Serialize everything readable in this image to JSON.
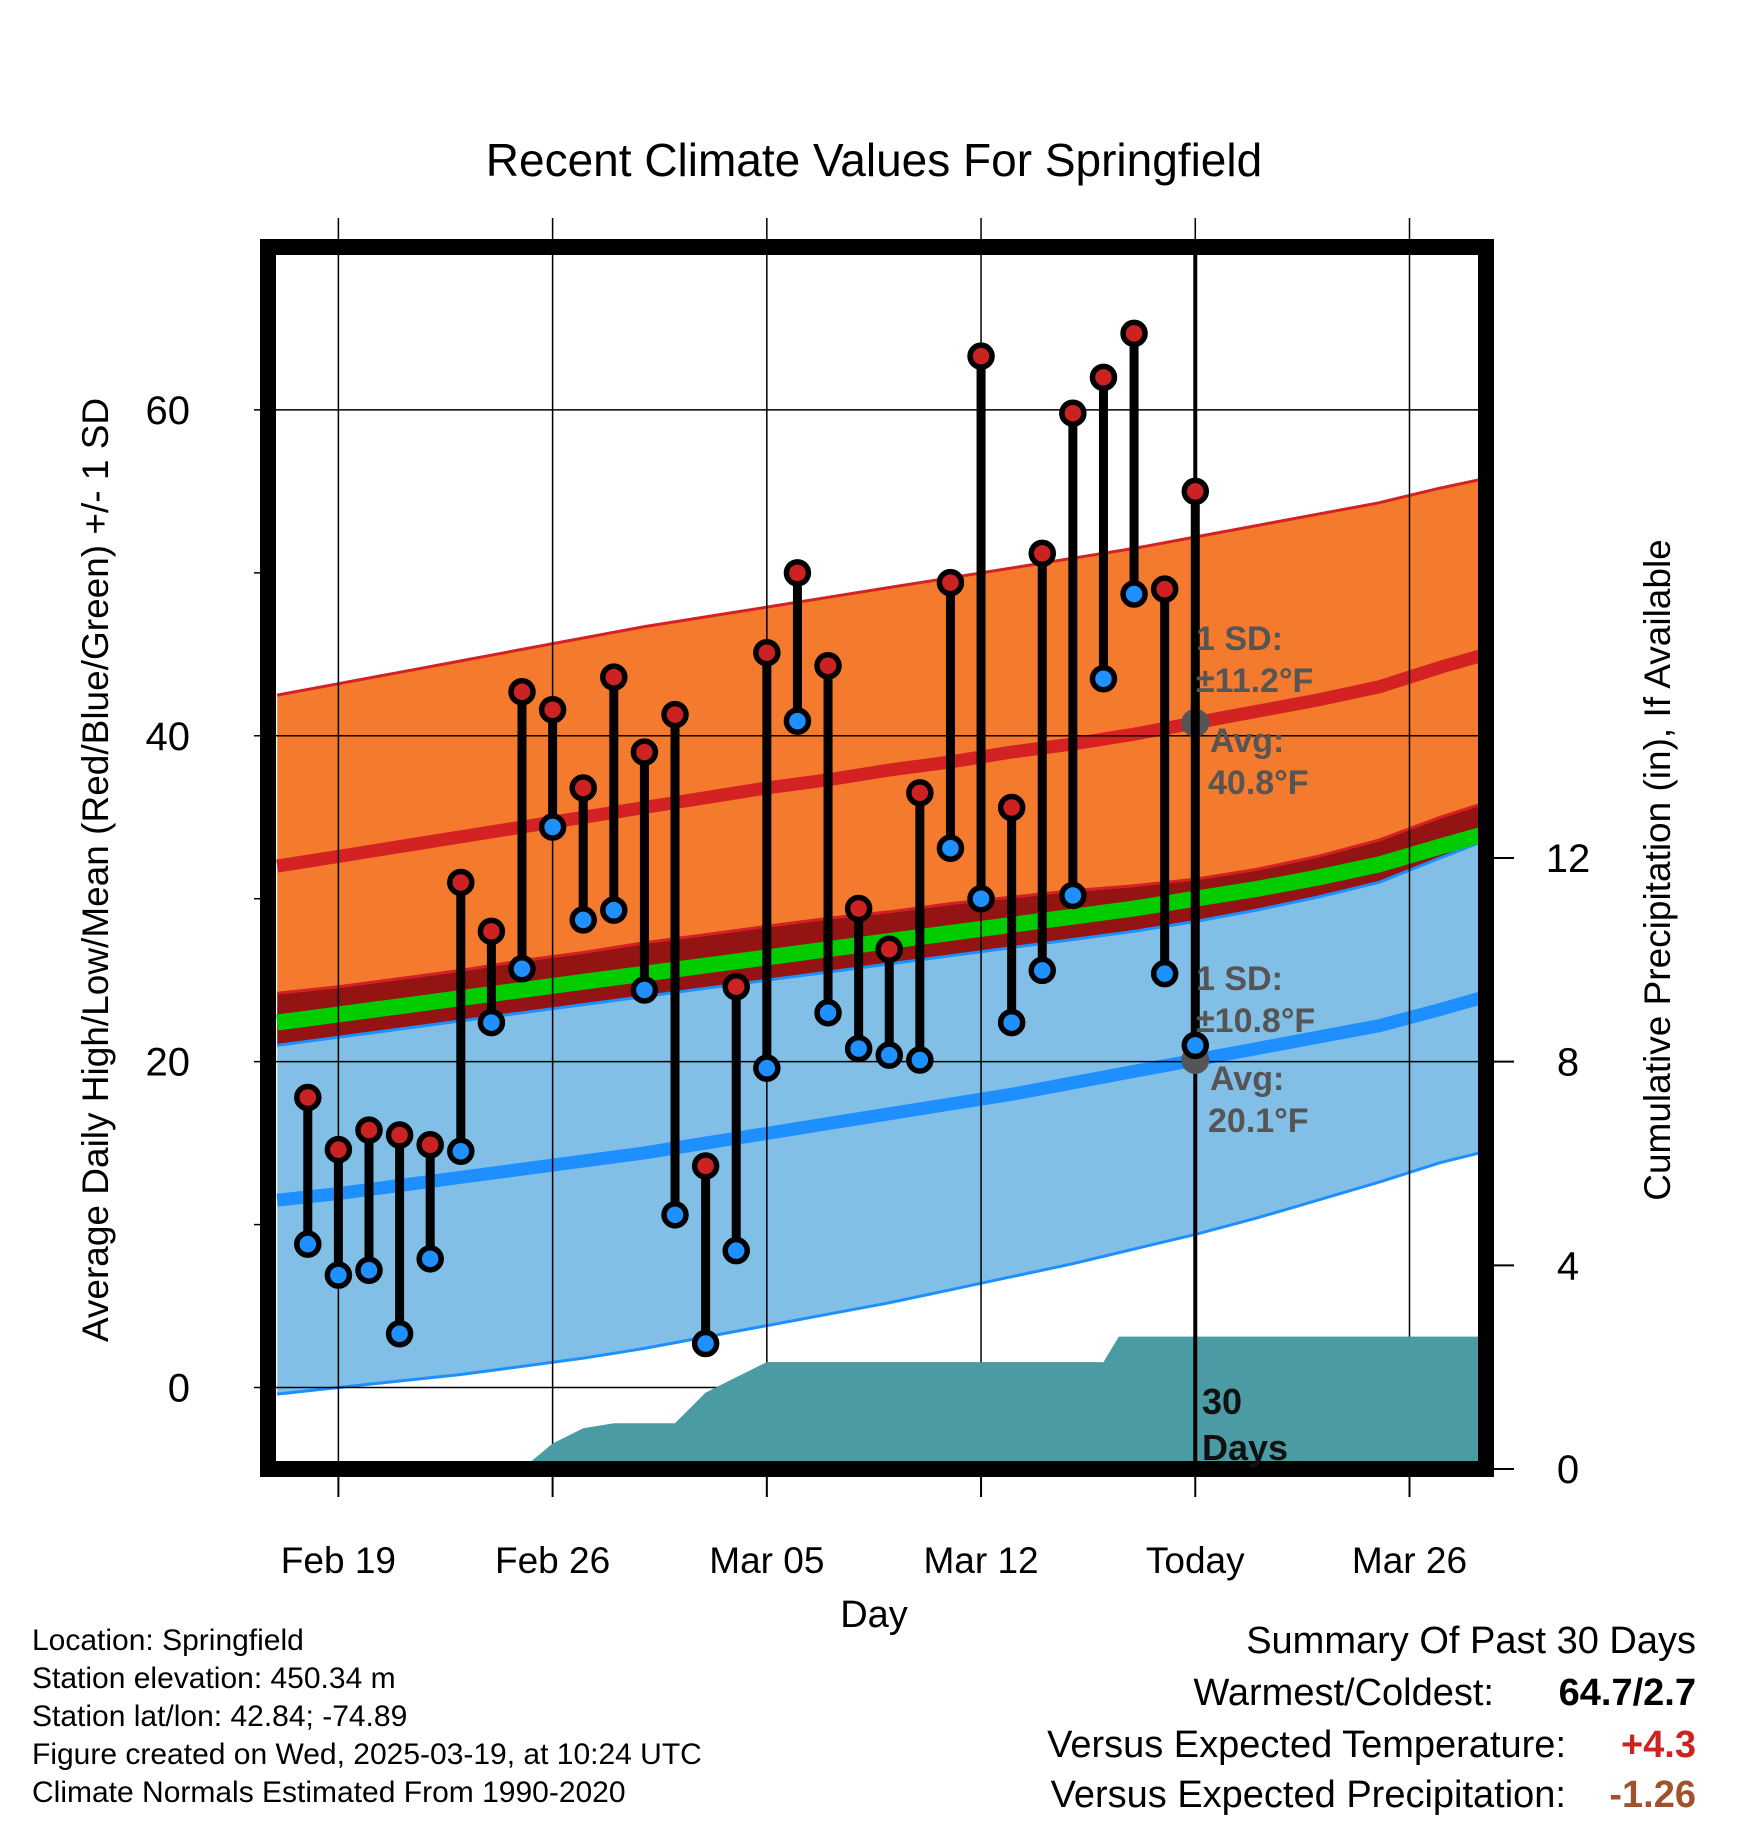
{
  "chart_data": {
    "type": "line",
    "title": "Recent Climate Values For Springfield",
    "xlabel": "Day",
    "ylabel": "Average Daily High/Low/Mean (Red/Blue/Green) +/- 1 SD",
    "y2label": "Cumulative Precipitation (in), If Available",
    "ylim": [
      -5,
      70
    ],
    "y2lim": [
      0,
      24
    ],
    "xlim": [
      -2.3,
      37.5
    ],
    "yticks": [
      "0",
      "20",
      "40",
      "60"
    ],
    "y2ticks": [
      "0",
      "4",
      "8",
      "12"
    ],
    "xticks": [
      {
        "label": "Feb 19",
        "day": 0
      },
      {
        "label": "Feb 26",
        "day": 7
      },
      {
        "label": "Mar 05",
        "day": 14
      },
      {
        "label": "Mar 12",
        "day": 21
      },
      {
        "label": "Today",
        "day": 28
      },
      {
        "label": "Mar 26",
        "day": 35
      }
    ],
    "daily_high": [
      17.8,
      14.6,
      15.8,
      15.5,
      14.9,
      31.0,
      28.0,
      42.7,
      41.6,
      36.8,
      43.6,
      39.0,
      41.3,
      13.6,
      24.6,
      45.1,
      50.0,
      44.3,
      29.4,
      26.9,
      36.5,
      49.4,
      63.3,
      35.6,
      51.2,
      59.8,
      62.0,
      64.7,
      49.0,
      55.0
    ],
    "daily_low": [
      8.8,
      6.9,
      7.2,
      3.3,
      7.9,
      14.5,
      22.4,
      25.7,
      34.4,
      28.7,
      29.3,
      24.4,
      10.6,
      2.7,
      8.4,
      19.6,
      40.9,
      23.0,
      20.8,
      20.4,
      20.1,
      33.1,
      30.0,
      22.4,
      25.6,
      30.2,
      43.5,
      48.7,
      25.4,
      21.0
    ],
    "normal_band_days": [
      -2,
      0,
      2,
      4,
      6,
      8,
      10,
      12,
      14,
      16,
      18,
      20,
      22,
      24,
      26,
      28,
      30,
      32,
      34,
      36,
      37.5
    ],
    "normal_high_mean": [
      32.0,
      32.6,
      33.2,
      33.8,
      34.4,
      35.0,
      35.6,
      36.2,
      36.8,
      37.3,
      37.9,
      38.4,
      39.0,
      39.5,
      40.1,
      40.8,
      41.5,
      42.2,
      43.0,
      44.2,
      45.0
    ],
    "normal_high_upper": [
      42.5,
      43.2,
      43.9,
      44.6,
      45.3,
      46.0,
      46.7,
      47.3,
      47.9,
      48.5,
      49.1,
      49.7,
      50.3,
      50.9,
      51.5,
      52.2,
      52.9,
      53.6,
      54.3,
      55.2,
      55.8
    ],
    "normal_high_lower": [
      24.2,
      24.6,
      25.1,
      25.6,
      26.2,
      26.7,
      27.3,
      27.8,
      28.3,
      28.8,
      29.2,
      29.7,
      30.1,
      30.5,
      30.8,
      31.2,
      31.8,
      32.6,
      33.6,
      35.0,
      35.9
    ],
    "normal_mean": [
      22.4,
      22.9,
      23.4,
      23.9,
      24.4,
      24.9,
      25.4,
      25.9,
      26.4,
      26.9,
      27.4,
      27.9,
      28.4,
      28.9,
      29.4,
      30.0,
      30.6,
      31.3,
      32.1,
      33.2,
      34.0
    ],
    "normal_low_mean": [
      11.5,
      11.9,
      12.4,
      12.9,
      13.4,
      13.9,
      14.4,
      15.0,
      15.6,
      16.2,
      16.8,
      17.4,
      18.0,
      18.7,
      19.4,
      20.1,
      20.8,
      21.5,
      22.2,
      23.2,
      24.0
    ],
    "normal_low_upper": [
      21.0,
      21.5,
      22.0,
      22.5,
      23.0,
      23.5,
      24.0,
      24.5,
      25.0,
      25.5,
      26.0,
      26.5,
      27.0,
      27.5,
      28.0,
      28.6,
      29.3,
      30.1,
      31.0,
      32.5,
      33.6
    ],
    "normal_low_lower": [
      -0.4,
      0.0,
      0.4,
      0.8,
      1.3,
      1.8,
      2.4,
      3.1,
      3.8,
      4.5,
      5.2,
      6.0,
      6.8,
      7.6,
      8.5,
      9.4,
      10.4,
      11.5,
      12.6,
      13.8,
      14.5
    ],
    "precip_days": [
      6,
      7,
      7,
      8,
      8,
      9,
      9.5,
      10,
      11,
      12,
      13,
      14,
      15,
      16,
      17,
      18,
      19,
      20,
      21,
      22,
      23,
      24,
      25,
      25.5,
      26,
      28,
      30,
      32,
      34,
      36,
      37.5
    ],
    "precip_cum": [
      0.0,
      0.5,
      0.5,
      0.8,
      0.8,
      0.9,
      0.9,
      0.9,
      0.9,
      1.5,
      1.8,
      2.1,
      2.1,
      2.1,
      2.1,
      2.1,
      2.1,
      2.1,
      2.1,
      2.1,
      2.1,
      2.1,
      2.1,
      2.6,
      2.6,
      2.6,
      2.6,
      2.6,
      2.6,
      2.6,
      2.6
    ],
    "annotations": {
      "high_sd_label": "1 SD:",
      "high_sd_value": "±11.2°F",
      "high_avg_label": "Avg:",
      "high_avg_value": "40.8°F",
      "low_sd_label": "1 SD:",
      "low_sd_value": "±10.8°F",
      "low_avg_label": "Avg:",
      "low_avg_value": "20.1°F",
      "precip_label_1": "30",
      "precip_label_2": "Days",
      "today_high_avg": 40.8,
      "today_low_avg": 20.1
    },
    "colors": {
      "high_band": "#f47a2e",
      "high_line": "#d42222",
      "low_band": "#82bfe6",
      "low_line": "#1e8fff",
      "mean_line": "#00cc00",
      "overlap_band": "#941313",
      "precip": "#4a9ba3",
      "high_marker": "#cc2222",
      "low_marker": "#1e90ff"
    }
  },
  "footer": {
    "location": "Location: Springfield",
    "elevation": "Station elevation: 450.34 m",
    "latlon": "Station lat/lon: 42.84; -74.89",
    "created": "Figure created on Wed, 2025-03-19, at 10:24 UTC",
    "normals": "Climate Normals Estimated From 1990-2020"
  },
  "summary": {
    "title": "Summary Of Past 30 Days",
    "warmest_label": "Warmest/Coldest:",
    "warmest_value": "64.7/2.7",
    "temp_label": "Versus Expected Temperature:",
    "temp_value": "+4.3",
    "precip_label": "Versus Expected Precipitation:",
    "precip_value": "-1.26",
    "temp_color": "#cc2222",
    "precip_color": "#a0522d"
  }
}
